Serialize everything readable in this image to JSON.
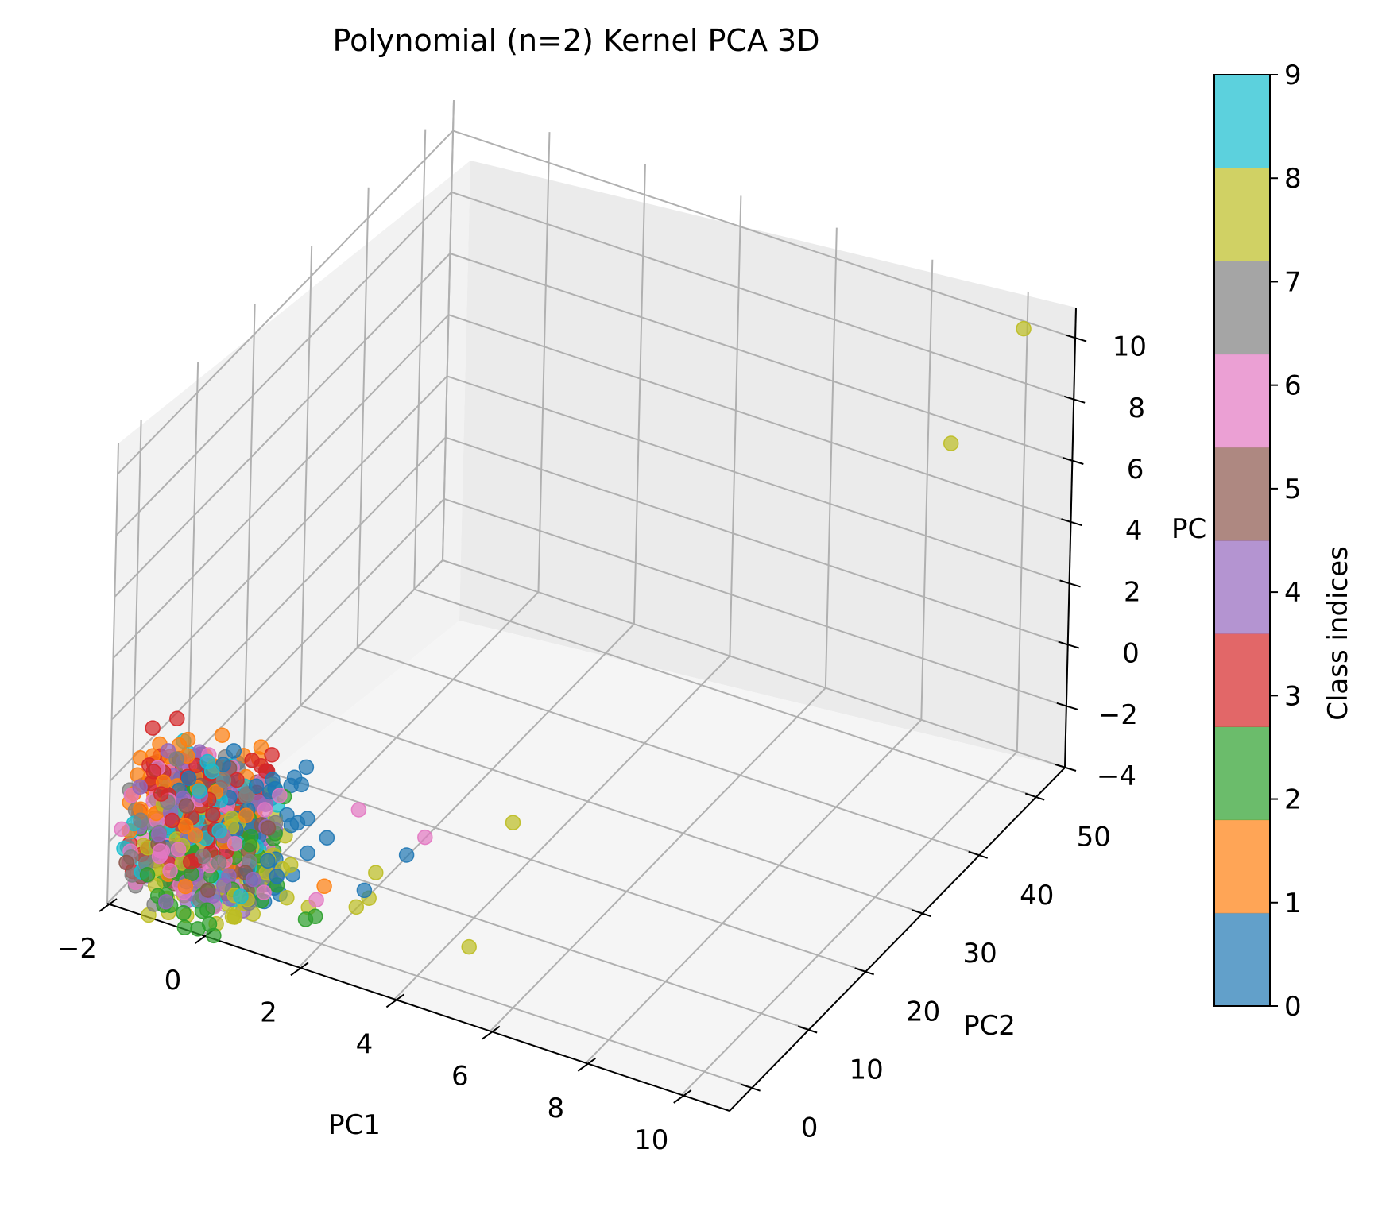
{
  "chart_data": {
    "type": "scatter",
    "title": "Polynomial (n=2) Kernel PCA 3D",
    "xlabel": "PC1",
    "ylabel": "PC2",
    "zlabel": "PC",
    "xlim": [
      -2,
      11
    ],
    "ylim": [
      -4,
      55
    ],
    "zlim": [
      -4,
      11
    ],
    "xticks": [
      -2,
      0,
      2,
      4,
      6,
      8,
      10
    ],
    "yticks": [
      0,
      10,
      20,
      30,
      40,
      50
    ],
    "zticks": [
      -4,
      -2,
      0,
      2,
      4,
      6,
      8,
      10
    ],
    "xtick_labels": [
      "−2",
      "0",
      "2",
      "4",
      "6",
      "8",
      "10"
    ],
    "ytick_labels": [
      "0",
      "10",
      "20",
      "30",
      "40",
      "50"
    ],
    "ztick_labels": [
      "−4",
      "−2",
      "0",
      "2",
      "4",
      "6",
      "8",
      "10"
    ],
    "grid": true,
    "projection": "3d",
    "colorbar": {
      "label": "Class indices",
      "ticks": [
        0,
        1,
        2,
        3,
        4,
        5,
        6,
        7,
        8,
        9
      ],
      "tick_labels": [
        "0",
        "1",
        "2",
        "3",
        "4",
        "5",
        "6",
        "7",
        "8",
        "9"
      ],
      "colors": [
        "#1f77b4",
        "#ff7f0e",
        "#2ca02c",
        "#d62728",
        "#9467bd",
        "#8c564b",
        "#e377c2",
        "#7f7f7f",
        "#bcbd22",
        "#17becf"
      ],
      "alpha": 0.7
    },
    "point_alpha": 0.7,
    "series": [
      {
        "class": 8,
        "points": [
          [
            10.5,
            50.0,
            11.0
          ],
          [
            10.2,
            40.0,
            9.0
          ],
          [
            4.3,
            14.0,
            -1.5
          ],
          [
            4.6,
            4.0,
            -3.5
          ],
          [
            2.5,
            4.0,
            -3.0
          ],
          [
            2.3,
            3.5,
            -3.3
          ],
          [
            1.6,
            1.0,
            -3.2
          ],
          [
            2.4,
            6.0,
            -2.6
          ],
          [
            1.2,
            0.5,
            -3.0
          ]
        ]
      },
      {
        "class": 6,
        "points": [
          [
            3.0,
            9.5,
            -1.8
          ],
          [
            1.9,
            7.0,
            -1.0
          ],
          [
            1.7,
            1.5,
            -3.0
          ]
        ]
      },
      {
        "class": 0,
        "points": [
          [
            2.8,
            8.0,
            -2.2
          ],
          [
            1.6,
            4.0,
            -1.5
          ],
          [
            2.4,
            4.0,
            -2.8
          ]
        ]
      },
      {
        "class": 1,
        "points": [
          [
            1.8,
            2.0,
            -2.6
          ]
        ]
      },
      {
        "class": 2,
        "points": [
          [
            1.8,
            0.5,
            -3.3
          ],
          [
            1.6,
            0.5,
            -3.5
          ]
        ]
      }
    ],
    "cluster_note": ""
  }
}
